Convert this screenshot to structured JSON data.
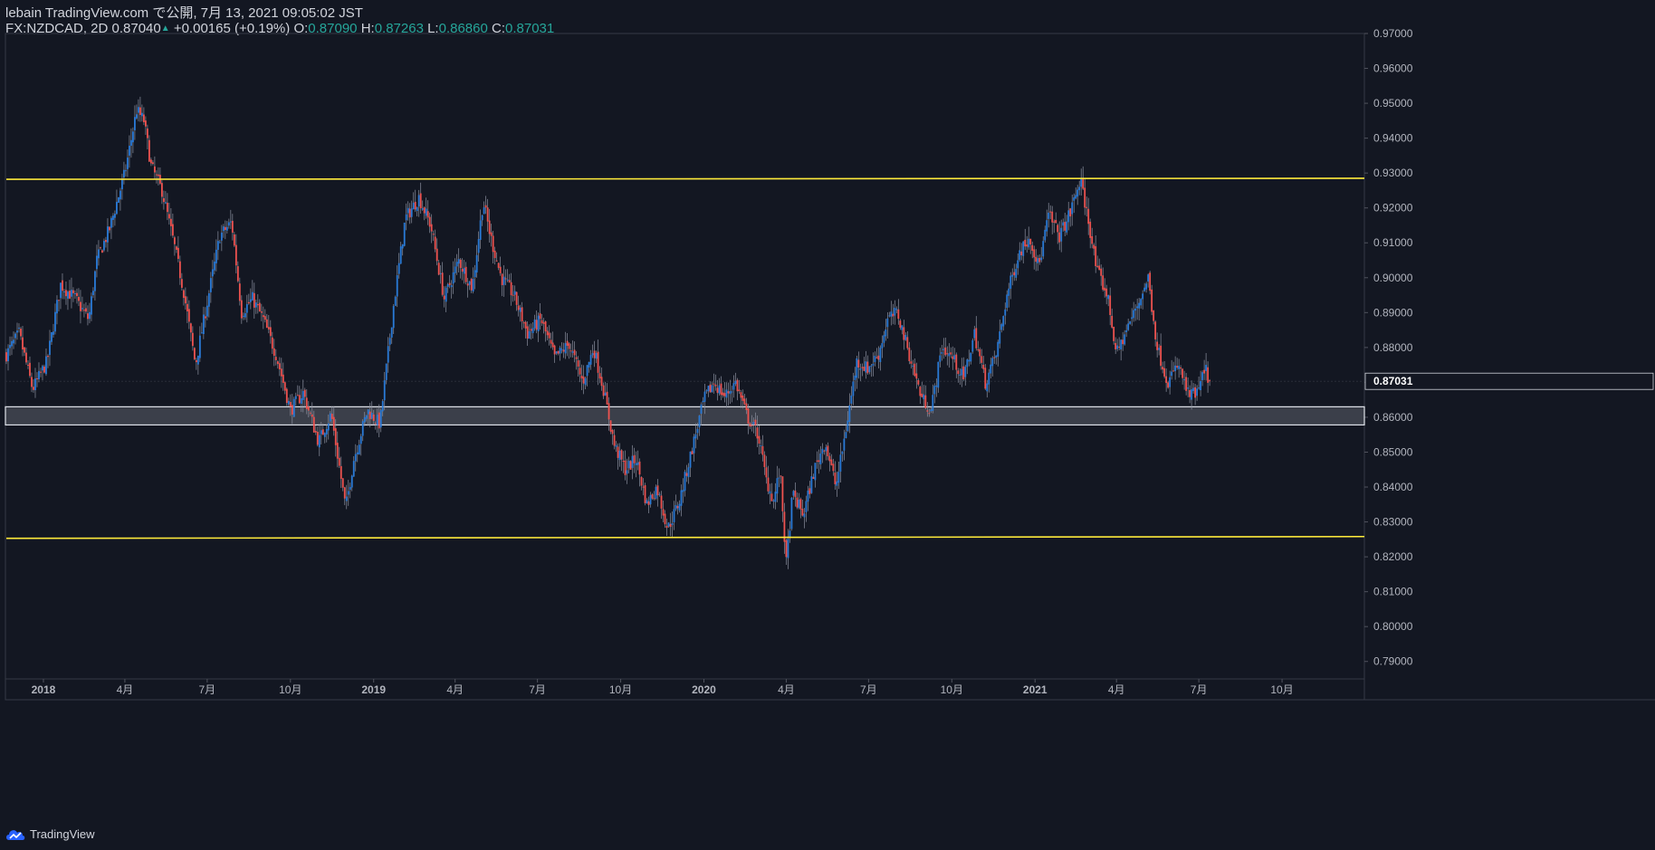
{
  "header": {
    "publish_line": "lebain TradingView.com で公開, 7月 13, 2021 09:05:02 JST",
    "symbol": "FX:NZDCAD, 2D",
    "last": "0.87040",
    "change": "+0.00165 (+0.19%)",
    "o_label": "O:",
    "o_value": "0.87090",
    "h_label": "H:",
    "h_value": "0.87263",
    "l_label": "L:",
    "l_value": "0.86860",
    "c_label": "C:",
    "c_value": "0.87031"
  },
  "footer": {
    "brand": "TradingView",
    "logo_icon": "tradingview-cloud-icon"
  },
  "colors": {
    "background": "#131722",
    "up": "#2a7bd8",
    "down": "#ef5350",
    "level_line": "#ffeb3b",
    "zone_fill": "#434651",
    "zone_border": "#e0e3eb",
    "axis_text": "#b2b5be",
    "price_label_bg": "#131722"
  },
  "chart_data": {
    "type": "candlestick",
    "symbol": "FX:NZDCAD",
    "interval": "2D",
    "y_range": [
      0.785,
      0.97
    ],
    "y_ticks": [
      "0.79000",
      "0.80000",
      "0.81000",
      "0.82000",
      "0.83000",
      "0.84000",
      "0.85000",
      "0.86000",
      "0.87000",
      "0.88000",
      "0.89000",
      "0.90000",
      "0.91000",
      "0.92000",
      "0.93000",
      "0.94000",
      "0.95000",
      "0.96000",
      "0.97000"
    ],
    "x_range": [
      "2017-11-20",
      "2021-12-31"
    ],
    "x_ticks": [
      {
        "date": "2018-01-01",
        "label": "2018",
        "bold": true
      },
      {
        "date": "2018-04-01",
        "label": "4月"
      },
      {
        "date": "2018-07-01",
        "label": "7月"
      },
      {
        "date": "2018-10-01",
        "label": "10月"
      },
      {
        "date": "2019-01-01",
        "label": "2019",
        "bold": true
      },
      {
        "date": "2019-04-01",
        "label": "4月"
      },
      {
        "date": "2019-07-01",
        "label": "7月"
      },
      {
        "date": "2019-10-01",
        "label": "10月"
      },
      {
        "date": "2020-01-01",
        "label": "2020",
        "bold": true
      },
      {
        "date": "2020-04-01",
        "label": "4月"
      },
      {
        "date": "2020-07-01",
        "label": "7月"
      },
      {
        "date": "2020-10-01",
        "label": "10月"
      },
      {
        "date": "2021-01-01",
        "label": "2021",
        "bold": true
      },
      {
        "date": "2021-04-01",
        "label": "4月"
      },
      {
        "date": "2021-07-01",
        "label": "7月"
      },
      {
        "date": "2021-10-01",
        "label": "10月"
      }
    ],
    "last_price": "0.87031",
    "close_path": [
      [
        "2017-11-21",
        0.878
      ],
      [
        "2017-12-05",
        0.884
      ],
      [
        "2017-12-20",
        0.868
      ],
      [
        "2018-01-05",
        0.876
      ],
      [
        "2018-01-20",
        0.898
      ],
      [
        "2018-02-05",
        0.894
      ],
      [
        "2018-02-20",
        0.888
      ],
      [
        "2018-03-01",
        0.905
      ],
      [
        "2018-03-15",
        0.914
      ],
      [
        "2018-04-01",
        0.93
      ],
      [
        "2018-04-14",
        0.948
      ],
      [
        "2018-04-22",
        0.945
      ],
      [
        "2018-04-30",
        0.932
      ],
      [
        "2018-05-12",
        0.925
      ],
      [
        "2018-05-25",
        0.91
      ],
      [
        "2018-06-05",
        0.896
      ],
      [
        "2018-06-18",
        0.875
      ],
      [
        "2018-07-01",
        0.893
      ],
      [
        "2018-07-15",
        0.912
      ],
      [
        "2018-07-28",
        0.916
      ],
      [
        "2018-08-08",
        0.89
      ],
      [
        "2018-08-20",
        0.894
      ],
      [
        "2018-09-01",
        0.888
      ],
      [
        "2018-09-15",
        0.878
      ],
      [
        "2018-10-01",
        0.862
      ],
      [
        "2018-10-15",
        0.867
      ],
      [
        "2018-11-01",
        0.853
      ],
      [
        "2018-11-15",
        0.861
      ],
      [
        "2018-12-01",
        0.834
      ],
      [
        "2018-12-10",
        0.848
      ],
      [
        "2018-12-25",
        0.862
      ],
      [
        "2019-01-08",
        0.858
      ],
      [
        "2019-01-22",
        0.89
      ],
      [
        "2019-02-05",
        0.917
      ],
      [
        "2019-02-20",
        0.923
      ],
      [
        "2019-03-05",
        0.915
      ],
      [
        "2019-03-20",
        0.894
      ],
      [
        "2019-04-05",
        0.905
      ],
      [
        "2019-04-20",
        0.897
      ],
      [
        "2019-05-02",
        0.922
      ],
      [
        "2019-05-10",
        0.912
      ],
      [
        "2019-05-22",
        0.9
      ],
      [
        "2019-06-05",
        0.895
      ],
      [
        "2019-06-20",
        0.884
      ],
      [
        "2019-07-05",
        0.888
      ],
      [
        "2019-07-20",
        0.877
      ],
      [
        "2019-08-05",
        0.881
      ],
      [
        "2019-08-20",
        0.87
      ],
      [
        "2019-09-01",
        0.88
      ],
      [
        "2019-09-12",
        0.868
      ],
      [
        "2019-09-24",
        0.852
      ],
      [
        "2019-10-06",
        0.845
      ],
      [
        "2019-10-18",
        0.848
      ],
      [
        "2019-10-30",
        0.835
      ],
      [
        "2019-11-10",
        0.84
      ],
      [
        "2019-11-22",
        0.828
      ],
      [
        "2019-12-05",
        0.836
      ],
      [
        "2019-12-18",
        0.85
      ],
      [
        "2020-01-01",
        0.865
      ],
      [
        "2020-01-12",
        0.87
      ],
      [
        "2020-01-24",
        0.866
      ],
      [
        "2020-02-05",
        0.87
      ],
      [
        "2020-02-18",
        0.86
      ],
      [
        "2020-03-01",
        0.855
      ],
      [
        "2020-03-10",
        0.842
      ],
      [
        "2020-03-18",
        0.836
      ],
      [
        "2020-03-25",
        0.845
      ],
      [
        "2020-04-01",
        0.818
      ],
      [
        "2020-04-08",
        0.838
      ],
      [
        "2020-04-20",
        0.832
      ],
      [
        "2020-05-02",
        0.845
      ],
      [
        "2020-05-14",
        0.853
      ],
      [
        "2020-05-26",
        0.84
      ],
      [
        "2020-06-05",
        0.855
      ],
      [
        "2020-06-18",
        0.876
      ],
      [
        "2020-06-30",
        0.874
      ],
      [
        "2020-07-12",
        0.878
      ],
      [
        "2020-07-22",
        0.888
      ],
      [
        "2020-08-02",
        0.89
      ],
      [
        "2020-08-15",
        0.878
      ],
      [
        "2020-08-28",
        0.866
      ],
      [
        "2020-09-08",
        0.862
      ],
      [
        "2020-09-20",
        0.88
      ],
      [
        "2020-10-02",
        0.877
      ],
      [
        "2020-10-14",
        0.871
      ],
      [
        "2020-10-26",
        0.884
      ],
      [
        "2020-11-07",
        0.87
      ],
      [
        "2020-11-19",
        0.878
      ],
      [
        "2020-12-01",
        0.895
      ],
      [
        "2020-12-14",
        0.907
      ],
      [
        "2020-12-26",
        0.912
      ],
      [
        "2021-01-05",
        0.903
      ],
      [
        "2021-01-16",
        0.918
      ],
      [
        "2021-01-28",
        0.912
      ],
      [
        "2021-02-08",
        0.918
      ],
      [
        "2021-02-20",
        0.928
      ],
      [
        "2021-03-02",
        0.915
      ],
      [
        "2021-03-10",
        0.902
      ],
      [
        "2021-03-22",
        0.895
      ],
      [
        "2021-04-01",
        0.878
      ],
      [
        "2021-04-12",
        0.885
      ],
      [
        "2021-04-24",
        0.892
      ],
      [
        "2021-05-06",
        0.9
      ],
      [
        "2021-05-16",
        0.88
      ],
      [
        "2021-05-28",
        0.87
      ],
      [
        "2021-06-08",
        0.875
      ],
      [
        "2021-06-20",
        0.866
      ],
      [
        "2021-06-30",
        0.867
      ],
      [
        "2021-07-08",
        0.874
      ],
      [
        "2021-07-13",
        0.8703
      ]
    ],
    "annotations": [
      {
        "type": "trendline",
        "name": "upper-resistance-line",
        "from": [
          "2017-11-21",
          0.9282
        ],
        "to": [
          "2021-12-31",
          0.9285
        ]
      },
      {
        "type": "trendline",
        "name": "lower-support-line",
        "from": [
          "2017-11-21",
          0.8253
        ],
        "to": [
          "2021-12-31",
          0.8258
        ]
      },
      {
        "type": "zone",
        "name": "support-zone",
        "top": 0.863,
        "bottom": 0.8578
      }
    ]
  }
}
